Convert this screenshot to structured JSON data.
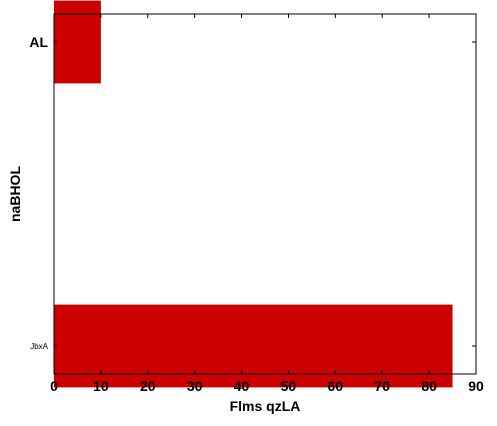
{
  "chart_data": {
    "type": "bar",
    "orientation": "horizontal",
    "categories": [
      "AL",
      "JbxA"
    ],
    "values": [
      10,
      85
    ],
    "xlabel": "Flms qzLA",
    "ylabel": "naBHOL",
    "xlim": [
      0,
      90
    ],
    "xticks": [
      0,
      10,
      20,
      30,
      40,
      50,
      60,
      70,
      80,
      90
    ],
    "bar_color": "#cc0000",
    "grid": false,
    "legend": "none"
  }
}
